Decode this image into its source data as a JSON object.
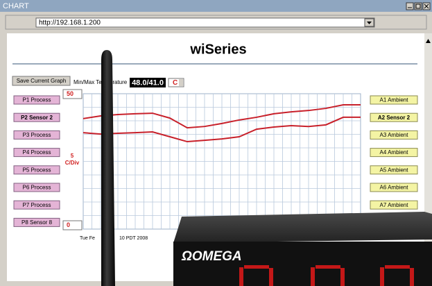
{
  "window": {
    "title": "CHART",
    "url": "http://192.168.1.200"
  },
  "page": {
    "title": "wiSeries",
    "save_button": "Save Current Graph",
    "minmax_label": "Min/Max Temperature",
    "minmax_value": "48.0/41.0",
    "unit": "C",
    "left_buttons": [
      "P1 Process",
      "P2 Sensor 2",
      "P3 Process",
      "P4 Process",
      "P5 Process",
      "P6 Process",
      "P7 Process",
      "P8 Sensor 8"
    ],
    "right_buttons": [
      "A1 Ambient",
      "A2 Sensor 2",
      "A3 Ambient",
      "A4 Ambient",
      "A5 Ambient",
      "A6 Ambient",
      "A7 Ambient"
    ],
    "timestamp_start": "Tue Fe",
    "timestamp_end": "10 PDT 2008"
  },
  "chart": {
    "type": "line",
    "ylim": [
      0,
      50
    ],
    "ystep": 5,
    "ystep_unit": "C/Div",
    "series": [
      {
        "color": "#c8202a",
        "values": [
          40.8,
          41.8,
          42.3,
          42.6,
          42.8,
          41.0,
          37.4,
          37.9,
          39.0,
          40.3,
          41.3,
          42.6,
          43.3,
          43.8,
          44.6,
          45.9,
          45.9
        ]
      },
      {
        "color": "#c8202a",
        "values": [
          35.6,
          35.1,
          35.4,
          35.6,
          35.9,
          34.1,
          32.3,
          32.8,
          33.3,
          34.1,
          36.9,
          37.7,
          38.2,
          37.9,
          38.5,
          41.3,
          41.3
        ]
      }
    ]
  },
  "device": {
    "brand": "ΩOMEGA"
  }
}
